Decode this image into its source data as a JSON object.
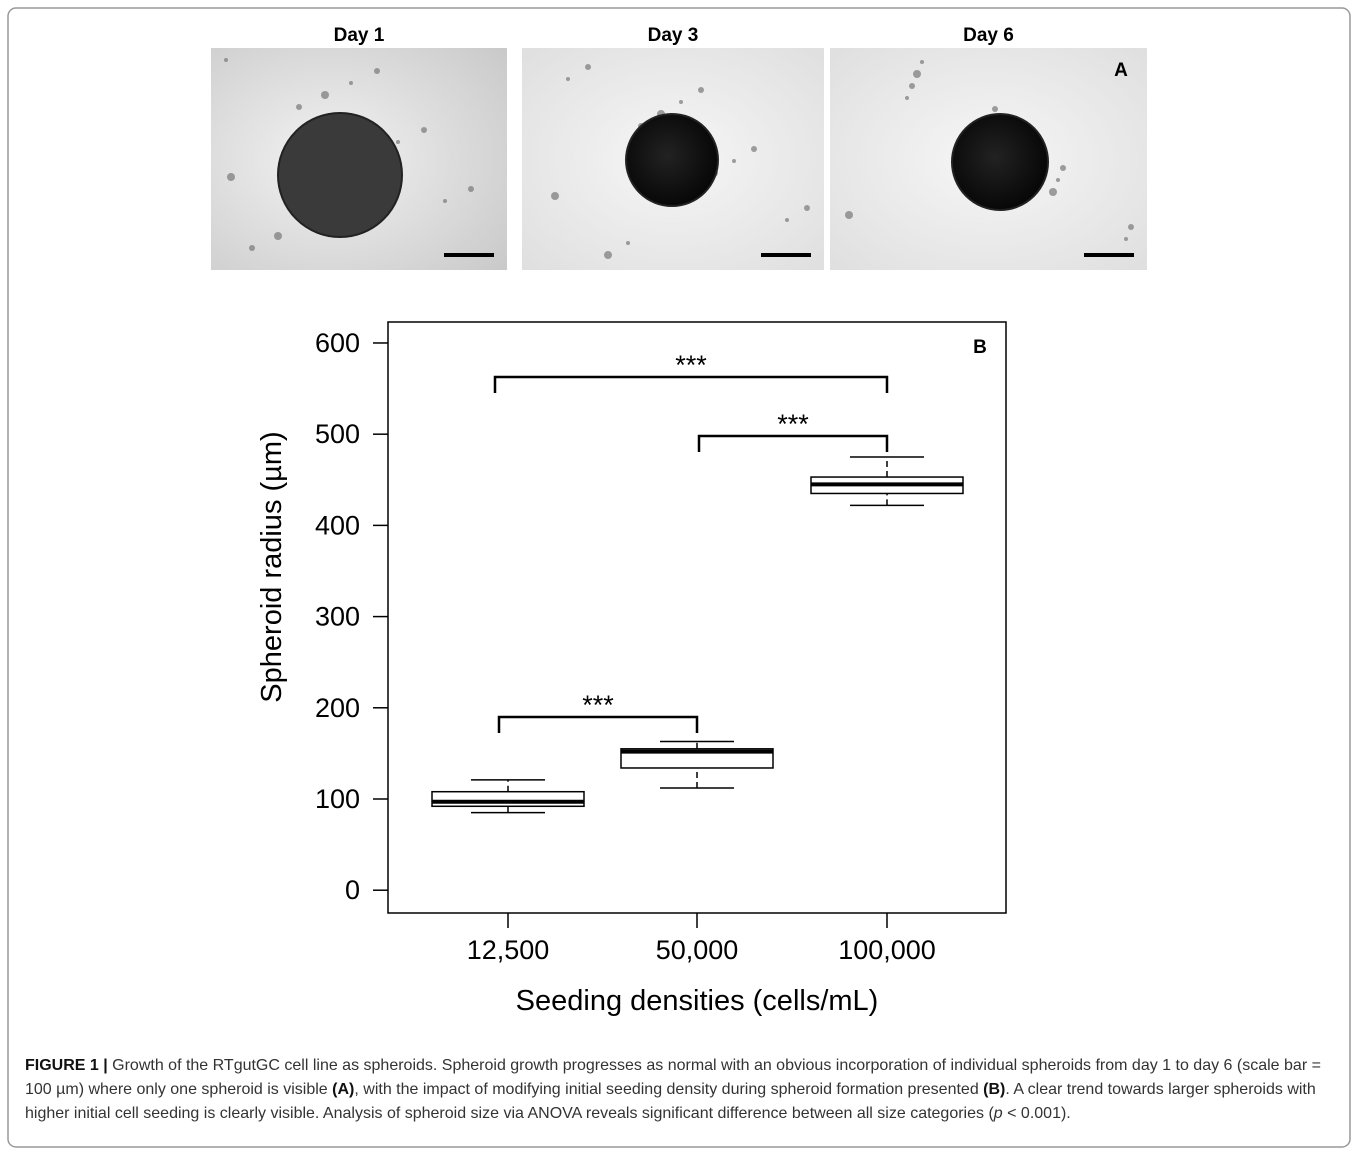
{
  "panel_a": {
    "label": "A",
    "images": [
      {
        "title": "Day 1"
      },
      {
        "title": "Day 3"
      },
      {
        "title": "Day 6"
      }
    ]
  },
  "chart_data": {
    "type": "box",
    "panel_label": "B",
    "x_label": "Seeding densities (cells/mL)",
    "y_label": "Spheroid radius (µm)",
    "categories": [
      "12,500",
      "50,000",
      "100,000"
    ],
    "boxes": [
      {
        "whislo": 85,
        "q1": 92,
        "med": 97,
        "q3": 108,
        "whishi": 121
      },
      {
        "whislo": 112,
        "q1": 134,
        "med": 152,
        "q3": 155,
        "whishi": 163
      },
      {
        "whislo": 422,
        "q1": 435,
        "med": 445,
        "q3": 453,
        "whishi": 475
      }
    ],
    "color": "#000000",
    "ylim": [
      -25,
      623
    ],
    "yticks": [
      0,
      100,
      200,
      300,
      400,
      500,
      600
    ],
    "annotations": [
      {
        "text": "***"
      },
      {
        "text": "***"
      },
      {
        "text": "***"
      }
    ]
  },
  "caption": [
    {
      "text": "FIGURE 1 | ",
      "style": "bold"
    },
    {
      "text": "Growth of the RTgutGC cell line as spheroids. Spheroid growth progresses as normal with an obvious incorporation of individual spheroids from day 1 to day 6 (scale bar = 100 µm) where only one spheroid is visible ",
      "style": "normal"
    },
    {
      "text": "(A)",
      "style": "bold"
    },
    {
      "text": ", with the impact of modifying initial seeding density during spheroid formation presented ",
      "style": "normal"
    },
    {
      "text": "(B)",
      "style": "bold"
    },
    {
      "text": ". A clear trend towards larger spheroids with higher initial cell seeding is clearly visible. Analysis of spheroid size via ANOVA reveals significant difference between all size categories (",
      "style": "normal"
    },
    {
      "text": "p",
      "style": "italic"
    },
    {
      "text": " < 0.001).",
      "style": "normal"
    }
  ]
}
